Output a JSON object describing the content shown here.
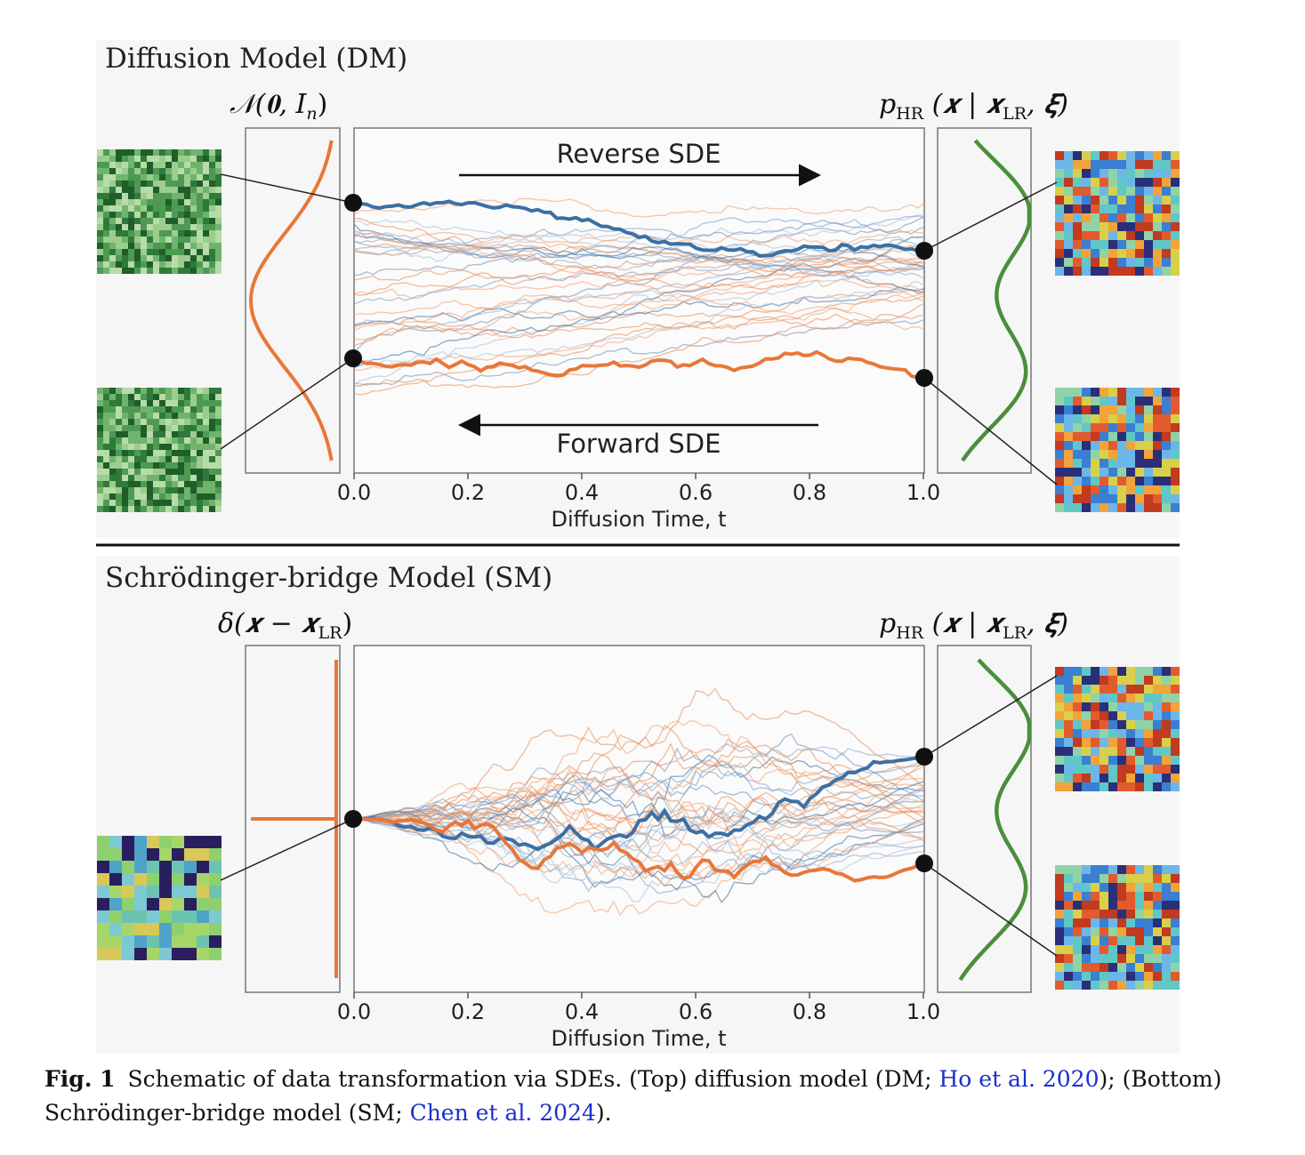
{
  "top_panel": {
    "title": "Diffusion Model (DM)",
    "left_dist_label": "𝒩(𝟎, I",
    "left_dist_sub": "n",
    "right_dist_label": "p",
    "right_dist_sub": "HR",
    "right_dist_rest": "(𝒙 | 𝒙",
    "right_dist_sub2": "LR",
    "right_dist_end": ", 𝝃)",
    "reverse_label": "Reverse SDE",
    "forward_label": "Forward SDE",
    "xticks": [
      "0.0",
      "0.2",
      "0.4",
      "0.6",
      "0.8",
      "1.0"
    ],
    "xlabel": "Diffusion Time, t"
  },
  "bottom_panel": {
    "title": "Schrödinger-bridge Model (SM)",
    "left_dist_label": "δ(𝒙 − 𝒙",
    "left_dist_sub": "LR",
    "left_dist_end": ")",
    "right_dist_label": "p",
    "right_dist_sub": "HR",
    "right_dist_rest": "(𝒙 | 𝒙",
    "right_dist_sub2": "LR",
    "right_dist_end": ", 𝝃)",
    "xticks": [
      "0.0",
      "0.2",
      "0.4",
      "0.6",
      "0.8",
      "1.0"
    ],
    "xlabel": "Diffusion Time, t"
  },
  "caption": {
    "label": "Fig. 1",
    "text_1": "Schematic of data transformation via SDEs. (Top) diffusion model (DM; ",
    "cite_1": "Ho et al. 2020",
    "text_2": "); (Bottom) Schrödinger-bridge model (SM; ",
    "cite_2": "Chen et al. 2024",
    "text_3": ")."
  },
  "colors": {
    "panel_bg": "#f6f6f6",
    "orange": "#e8773a",
    "blue": "#3d6fa3",
    "green": "#4a8f3c",
    "black": "#111111"
  }
}
